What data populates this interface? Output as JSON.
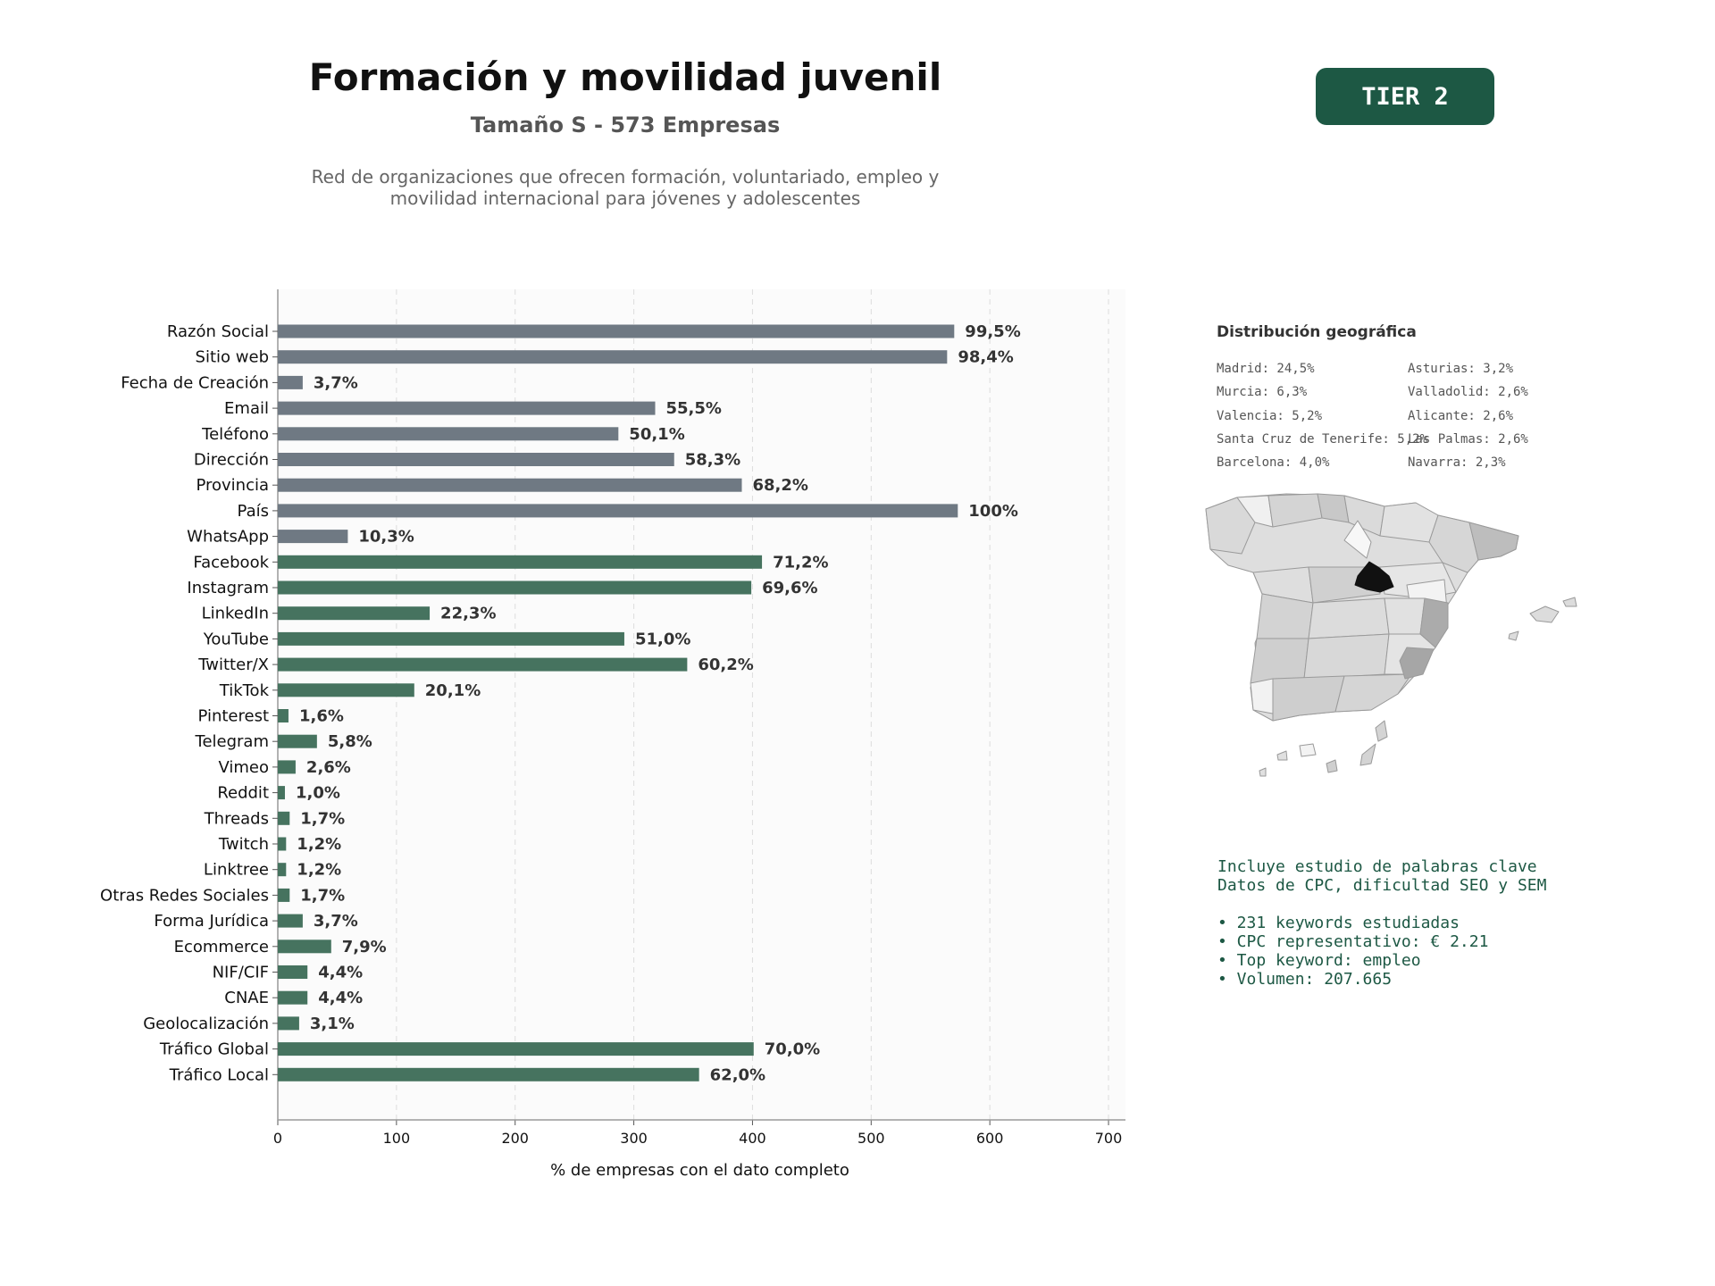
{
  "header": {
    "title": "Formación y movilidad juvenil",
    "subtitle": "Tamaño S - 573 Empresas",
    "description_line1": "Red de organizaciones que ofrecen formación, voluntariado, empleo y",
    "description_line2": "movilidad internacional para jóvenes y adolescentes",
    "tier_badge": "TIER 2"
  },
  "chart_data": {
    "type": "bar",
    "orientation": "horizontal",
    "xlabel": "% de empresas con el dato completo",
    "ylabel": "",
    "xlim": [
      0,
      720
    ],
    "xticks": [
      0,
      100,
      200,
      300,
      400,
      500,
      600,
      700
    ],
    "grid": "vertical dashed",
    "colors": {
      "contact": "#6f7983",
      "social": "#46735f"
    },
    "categories": [
      "Razón Social",
      "Sitio web",
      "Fecha de Creación",
      "Email",
      "Teléfono",
      "Dirección",
      "Provincia",
      "País",
      "WhatsApp",
      "Facebook",
      "Instagram",
      "LinkedIn",
      "YouTube",
      "Twitter/X",
      "TikTok",
      "Pinterest",
      "Telegram",
      "Vimeo",
      "Reddit",
      "Threads",
      "Twitch",
      "Linktree",
      "Otras Redes Sociales",
      "Forma Jurídica",
      "Ecommerce",
      "NIF/CIF",
      "CNAE",
      "Geolocalización",
      "Tráfico Global",
      "Tráfico Local"
    ],
    "values": [
      570,
      564,
      21,
      318,
      287,
      334,
      391,
      573,
      59,
      408,
      399,
      128,
      292,
      345,
      115,
      9,
      33,
      15,
      6,
      10,
      7,
      7,
      10,
      21,
      45,
      25,
      25,
      18,
      401,
      355
    ],
    "labels": [
      "99,5%",
      "98,4%",
      "3,7%",
      "55,5%",
      "50,1%",
      "58,3%",
      "68,2%",
      "100%",
      "10,3%",
      "71,2%",
      "69,6%",
      "22,3%",
      "51,0%",
      "60,2%",
      "20,1%",
      "1,6%",
      "5,8%",
      "2,6%",
      "1,0%",
      "1,7%",
      "1,2%",
      "1,2%",
      "1,7%",
      "3,7%",
      "7,9%",
      "4,4%",
      "4,4%",
      "3,1%",
      "70,0%",
      "62,0%"
    ],
    "group": [
      "contact",
      "contact",
      "contact",
      "contact",
      "contact",
      "contact",
      "contact",
      "contact",
      "contact",
      "social",
      "social",
      "social",
      "social",
      "social",
      "social",
      "social",
      "social",
      "social",
      "social",
      "social",
      "social",
      "social",
      "social",
      "social",
      "social",
      "social",
      "social",
      "social",
      "social",
      "social"
    ]
  },
  "geo": {
    "title": "Distribución geográfica",
    "col1": [
      "Madrid: 24,5%",
      "Murcia: 6,3%",
      "Valencia: 5,2%",
      "Santa Cruz de Tenerife: 5,2%",
      "Barcelona: 4,0%"
    ],
    "col2": [
      "Asturias: 3,2%",
      "Valladolid: 2,6%",
      "Alicante: 2,6%",
      "Las Palmas: 2,6%",
      "Navarra: 2,3%"
    ]
  },
  "keywords": {
    "line1": "Incluye estudio de palabras clave",
    "line2": "Datos de CPC, dificultad SEO y SEM",
    "bullet1": "• 231 keywords estudiadas",
    "bullet2": "• CPC representativo: € 2.21",
    "bullet3": "• Top keyword: empleo",
    "bullet4": "• Volumen: 207.665"
  }
}
